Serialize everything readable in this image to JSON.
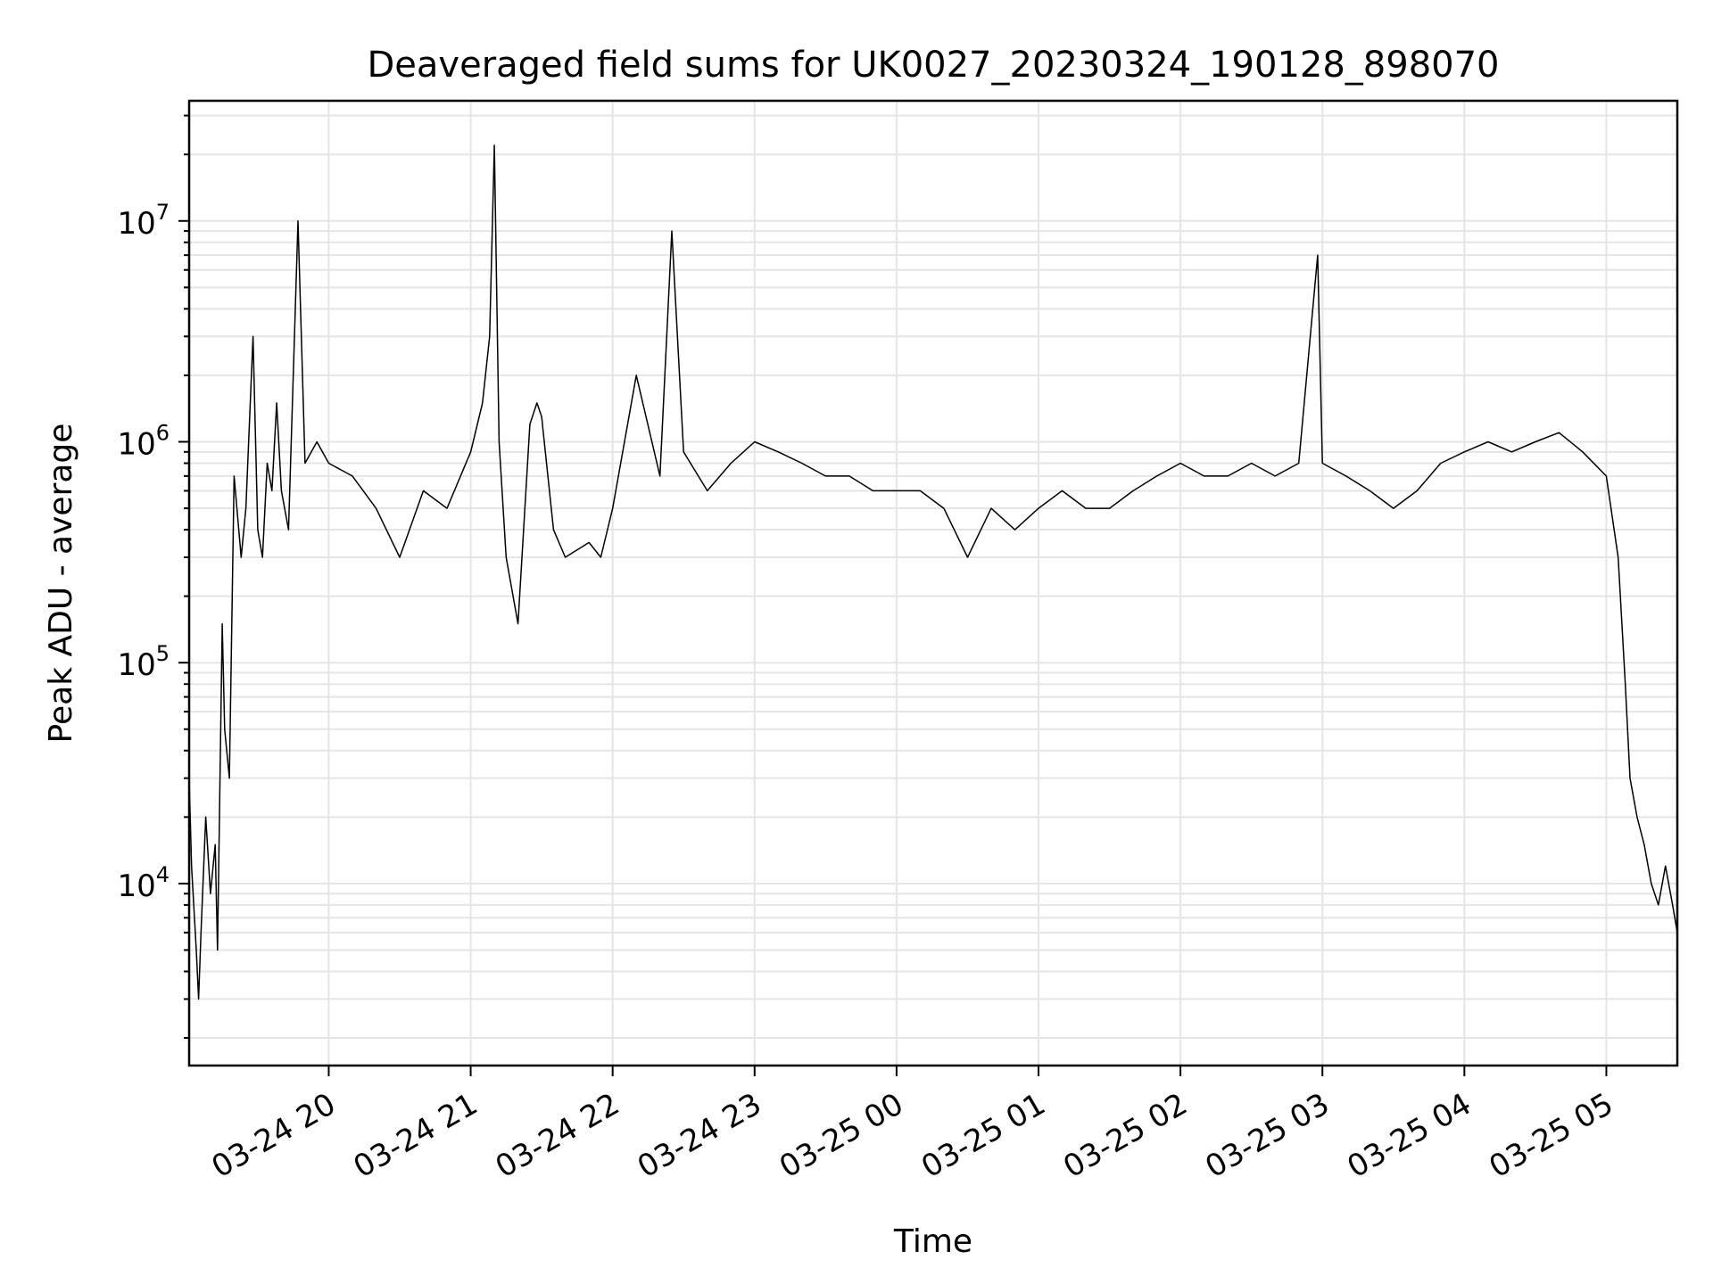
{
  "chart_data": {
    "type": "line",
    "title": "Deaveraged field sums for UK0027_20230324_190128_898070",
    "xlabel": "Time",
    "ylabel": "Peak ADU - average",
    "yscale": "log",
    "xlim": [
      "2023-03-24 19:01",
      "2023-03-25 05:30"
    ],
    "ylim": [
      1500,
      35000000
    ],
    "grid": true,
    "line_color": "#000000",
    "grid_color": "#e5e5e5",
    "x_ticks": [
      {
        "value": "2023-03-24 20:00",
        "label": "03-24 20"
      },
      {
        "value": "2023-03-24 21:00",
        "label": "03-24 21"
      },
      {
        "value": "2023-03-24 22:00",
        "label": "03-24 22"
      },
      {
        "value": "2023-03-24 23:00",
        "label": "03-24 23"
      },
      {
        "value": "2023-03-25 00:00",
        "label": "03-25 00"
      },
      {
        "value": "2023-03-25 01:00",
        "label": "03-25 01"
      },
      {
        "value": "2023-03-25 02:00",
        "label": "03-25 02"
      },
      {
        "value": "2023-03-25 03:00",
        "label": "03-25 03"
      },
      {
        "value": "2023-03-25 04:00",
        "label": "03-25 04"
      },
      {
        "value": "2023-03-25 05:00",
        "label": "03-25 05"
      }
    ],
    "y_ticks": [
      {
        "value": 10000,
        "base": "10",
        "exp": "4"
      },
      {
        "value": 100000,
        "base": "10",
        "exp": "5"
      },
      {
        "value": 1000000,
        "base": "10",
        "exp": "6"
      },
      {
        "value": 10000000,
        "base": "10",
        "exp": "7"
      }
    ],
    "series": [
      {
        "x": [
          "2023-03-24 19:01",
          "2023-03-24 19:02",
          "2023-03-24 19:04",
          "2023-03-24 19:05",
          "2023-03-24 19:06",
          "2023-03-24 19:08",
          "2023-03-24 19:10",
          "2023-03-24 19:12",
          "2023-03-24 19:13",
          "2023-03-24 19:15",
          "2023-03-24 19:16",
          "2023-03-24 19:18",
          "2023-03-24 19:20",
          "2023-03-24 19:23",
          "2023-03-24 19:25",
          "2023-03-24 19:28",
          "2023-03-24 19:30",
          "2023-03-24 19:32",
          "2023-03-24 19:34",
          "2023-03-24 19:36",
          "2023-03-24 19:38",
          "2023-03-24 19:40",
          "2023-03-24 19:43",
          "2023-03-24 19:47",
          "2023-03-24 19:50",
          "2023-03-24 19:55",
          "2023-03-24 20:00",
          "2023-03-24 20:10",
          "2023-03-24 20:20",
          "2023-03-24 20:30",
          "2023-03-24 20:40",
          "2023-03-24 20:50",
          "2023-03-24 21:00",
          "2023-03-24 21:05",
          "2023-03-24 21:08",
          "2023-03-24 21:10",
          "2023-03-24 21:12",
          "2023-03-24 21:15",
          "2023-03-24 21:20",
          "2023-03-24 21:25",
          "2023-03-24 21:28",
          "2023-03-24 21:30",
          "2023-03-24 21:35",
          "2023-03-24 21:40",
          "2023-03-24 21:50",
          "2023-03-24 21:55",
          "2023-03-24 22:00",
          "2023-03-24 22:10",
          "2023-03-24 22:20",
          "2023-03-24 22:25",
          "2023-03-24 22:30",
          "2023-03-24 22:40",
          "2023-03-24 22:50",
          "2023-03-24 23:00",
          "2023-03-24 23:10",
          "2023-03-24 23:20",
          "2023-03-24 23:30",
          "2023-03-24 23:40",
          "2023-03-24 23:50",
          "2023-03-25 00:00",
          "2023-03-25 00:10",
          "2023-03-25 00:20",
          "2023-03-25 00:30",
          "2023-03-25 00:40",
          "2023-03-25 00:50",
          "2023-03-25 01:00",
          "2023-03-25 01:10",
          "2023-03-25 01:20",
          "2023-03-25 01:30",
          "2023-03-25 01:40",
          "2023-03-25 01:50",
          "2023-03-25 02:00",
          "2023-03-25 02:10",
          "2023-03-25 02:20",
          "2023-03-25 02:30",
          "2023-03-25 02:40",
          "2023-03-25 02:50",
          "2023-03-25 02:58",
          "2023-03-25 03:00",
          "2023-03-25 03:10",
          "2023-03-25 03:20",
          "2023-03-25 03:30",
          "2023-03-25 03:40",
          "2023-03-25 03:50",
          "2023-03-25 04:00",
          "2023-03-25 04:10",
          "2023-03-25 04:20",
          "2023-03-25 04:30",
          "2023-03-25 04:40",
          "2023-03-25 04:50",
          "2023-03-25 05:00",
          "2023-03-25 05:05",
          "2023-03-25 05:08",
          "2023-03-25 05:10",
          "2023-03-25 05:13",
          "2023-03-25 05:16",
          "2023-03-25 05:19",
          "2023-03-25 05:22",
          "2023-03-25 05:25",
          "2023-03-25 05:28",
          "2023-03-25 05:30"
        ],
        "y": [
          30000,
          12000,
          5000,
          3000,
          6000,
          20000,
          9000,
          15000,
          5000,
          150000,
          50000,
          30000,
          700000,
          300000,
          500000,
          3000000,
          400000,
          300000,
          800000,
          600000,
          1500000,
          600000,
          400000,
          10000000,
          800000,
          1000000,
          800000,
          700000,
          500000,
          300000,
          600000,
          500000,
          900000,
          1500000,
          3000000,
          22000000,
          1000000,
          300000,
          150000,
          1200000,
          1500000,
          1300000,
          400000,
          300000,
          350000,
          300000,
          500000,
          2000000,
          700000,
          9000000,
          900000,
          600000,
          800000,
          1000000,
          900000,
          800000,
          700000,
          700000,
          600000,
          600000,
          600000,
          500000,
          300000,
          500000,
          400000,
          500000,
          600000,
          500000,
          500000,
          600000,
          700000,
          800000,
          700000,
          700000,
          800000,
          700000,
          800000,
          7000000,
          800000,
          700000,
          600000,
          500000,
          600000,
          800000,
          900000,
          1000000,
          900000,
          1000000,
          1100000,
          900000,
          700000,
          300000,
          80000,
          30000,
          20000,
          15000,
          10000,
          8000,
          12000,
          8000,
          6000
        ]
      }
    ]
  }
}
